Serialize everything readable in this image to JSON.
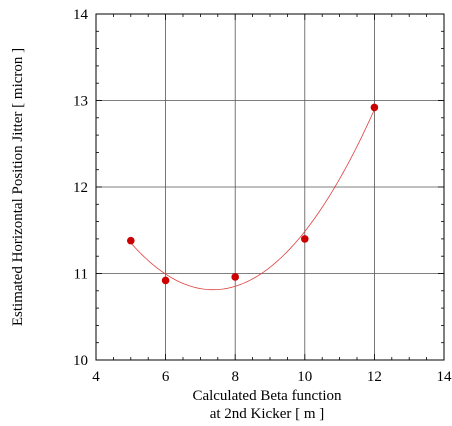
{
  "chart_data": {
    "type": "scatter",
    "title": "",
    "xlabel_lines": [
      "Calculated Beta function",
      "at 2nd Kicker  [ m ]"
    ],
    "ylabel": "Estimated Horizontal Position Jitter [ micron ]",
    "xlim": [
      4,
      14
    ],
    "ylim": [
      10,
      14
    ],
    "x_ticks": [
      4,
      6,
      8,
      10,
      12,
      14
    ],
    "y_ticks": [
      10,
      11,
      12,
      13,
      14
    ],
    "grid": true,
    "series": [
      {
        "points": [
          {
            "x": 5,
            "y": 11.38
          },
          {
            "x": 6,
            "y": 10.92
          },
          {
            "x": 8,
            "y": 10.96
          },
          {
            "x": 10,
            "y": 11.4
          },
          {
            "x": 12,
            "y": 12.92
          }
        ],
        "fit_curve": {
          "type": "quadratic",
          "x_range": [
            5,
            12
          ]
        },
        "color": "#cc0000"
      }
    ]
  }
}
